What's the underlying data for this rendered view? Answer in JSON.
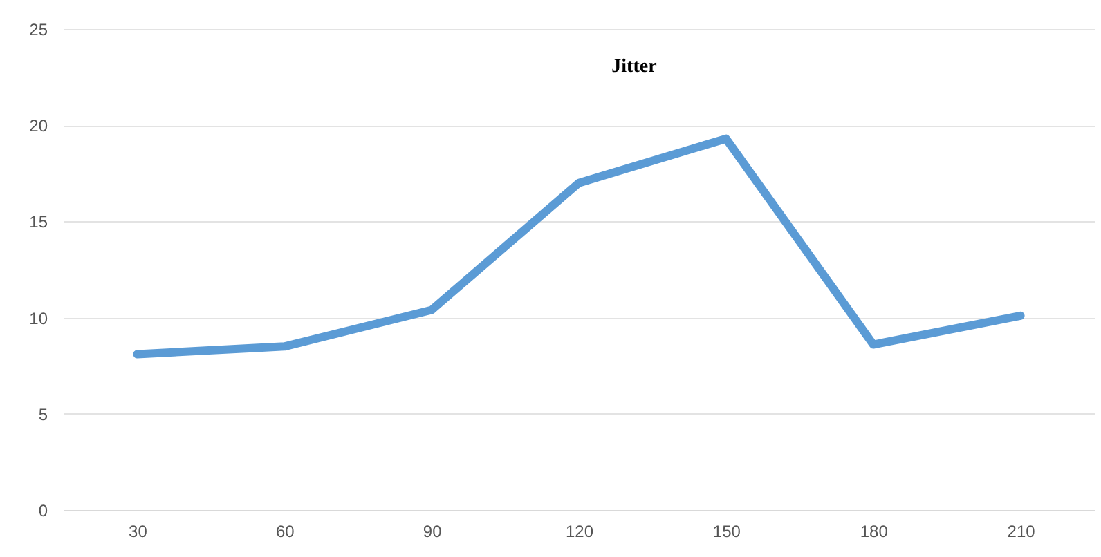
{
  "chart_data": {
    "type": "line",
    "title": "Jitter",
    "categories": [
      "30",
      "60",
      "90",
      "120",
      "150",
      "180",
      "210"
    ],
    "series": [
      {
        "color": "#5b9bd5",
        "values": [
          8.1,
          8.5,
          10.4,
          17.0,
          19.3,
          8.6,
          10.1
        ]
      }
    ],
    "ylim": [
      0,
      25
    ],
    "yticks": [
      0,
      5,
      10,
      15,
      20,
      25
    ],
    "grid": "y",
    "marker": "none",
    "line_style": "solid"
  }
}
